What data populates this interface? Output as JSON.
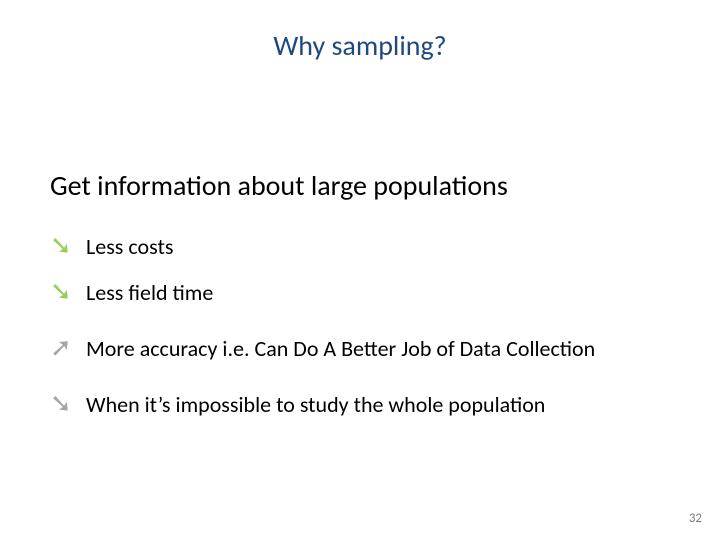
{
  "title": "Why sampling?",
  "subtitle": "Get information about large populations",
  "bullets": [
    {
      "text": "Less costs",
      "arrow_glyph": "➘",
      "arrow_color": "#9acd5a"
    },
    {
      "text": "Less field time",
      "arrow_glyph": "➘",
      "arrow_color": "#9acd5a"
    },
    {
      "text": "More accuracy i.e. Can Do A Better Job of Data Collection",
      "arrow_glyph": "➚",
      "arrow_color": "#a6a6a6"
    },
    {
      "text": "When it’s impossible to study the whole population",
      "arrow_glyph": "➘",
      "arrow_color": "#a6a6a6"
    }
  ],
  "page_number": "32",
  "colors": {
    "title_color": "#1f497d",
    "text_color": "#000000",
    "background": "#ffffff",
    "pagenum_color": "#7f7f7f"
  },
  "fonts": {
    "title_fontsize": 28,
    "subtitle_fontsize": 28,
    "bullet_fontsize": 22
  }
}
